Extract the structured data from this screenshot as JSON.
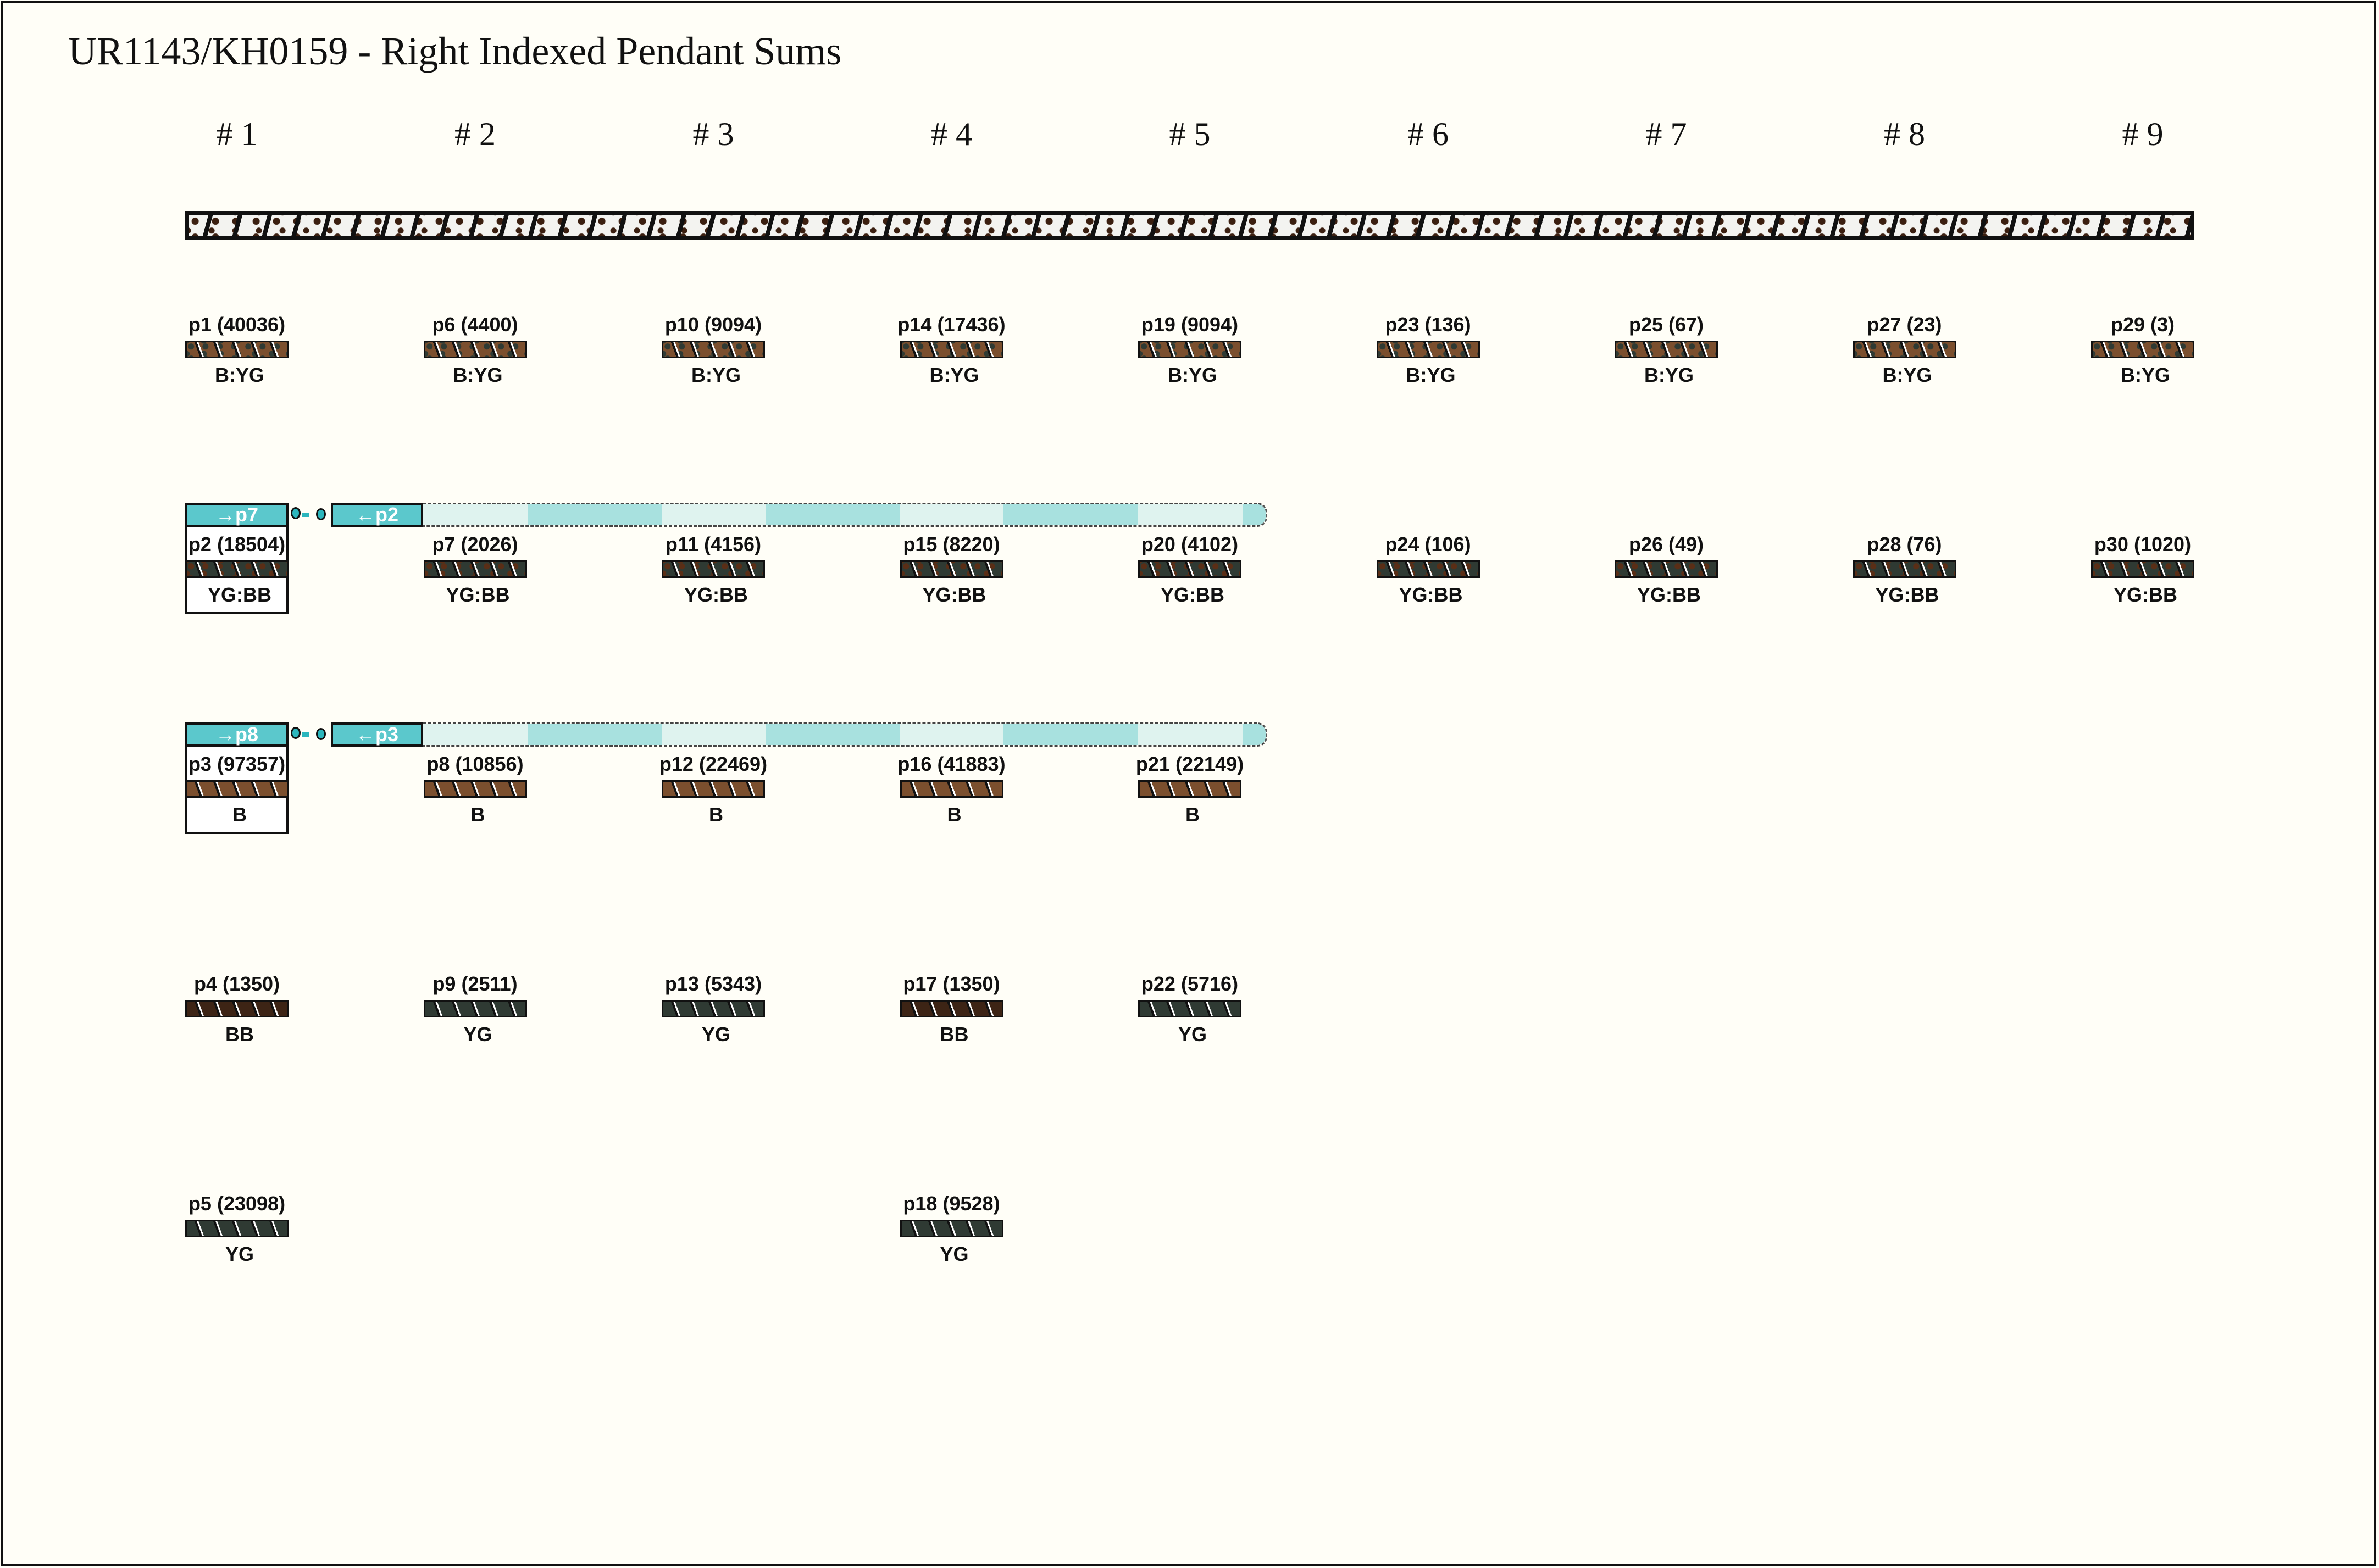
{
  "title": "UR1143/KH0159 - Right Indexed Pendant Sums",
  "groups": [
    "# 1",
    "# 2",
    "# 3",
    "# 4",
    "# 5",
    "# 6",
    "# 7",
    "# 8",
    "# 9"
  ],
  "colors": {
    "B": "#7b4f2e",
    "YG": "#2f3a33",
    "BB": "#3d2415",
    "main_cord": "#f3f3f0",
    "link": "#5bc8cc",
    "band_light": "#dff3ef",
    "band_dark": "#a8e1df"
  },
  "pendants": [
    {
      "name": "p1",
      "sum": "40036",
      "color": "B:YG",
      "group": 1,
      "index": 1
    },
    {
      "name": "p2",
      "sum": "18504",
      "color": "YG:BB",
      "group": 1,
      "index": 2
    },
    {
      "name": "p3",
      "sum": "97357",
      "color": "B",
      "group": 1,
      "index": 3
    },
    {
      "name": "p4",
      "sum": "1350",
      "color": "BB",
      "group": 1,
      "index": 4
    },
    {
      "name": "p5",
      "sum": "23098",
      "color": "YG",
      "group": 1,
      "index": 5
    },
    {
      "name": "p6",
      "sum": "4400",
      "color": "B:YG",
      "group": 2,
      "index": 1
    },
    {
      "name": "p7",
      "sum": "2026",
      "color": "YG:BB",
      "group": 2,
      "index": 2
    },
    {
      "name": "p8",
      "sum": "10856",
      "color": "B",
      "group": 2,
      "index": 3
    },
    {
      "name": "p9",
      "sum": "2511",
      "color": "YG",
      "group": 2,
      "index": 4
    },
    {
      "name": "p10",
      "sum": "9094",
      "color": "B:YG",
      "group": 3,
      "index": 1
    },
    {
      "name": "p11",
      "sum": "4156",
      "color": "YG:BB",
      "group": 3,
      "index": 2
    },
    {
      "name": "p12",
      "sum": "22469",
      "color": "B",
      "group": 3,
      "index": 3
    },
    {
      "name": "p13",
      "sum": "5343",
      "color": "YG",
      "group": 3,
      "index": 4
    },
    {
      "name": "p14",
      "sum": "17436",
      "color": "B:YG",
      "group": 4,
      "index": 1
    },
    {
      "name": "p15",
      "sum": "8220",
      "color": "YG:BB",
      "group": 4,
      "index": 2
    },
    {
      "name": "p16",
      "sum": "41883",
      "color": "B",
      "group": 4,
      "index": 3
    },
    {
      "name": "p17",
      "sum": "1350",
      "color": "BB",
      "group": 4,
      "index": 4
    },
    {
      "name": "p18",
      "sum": "9528",
      "color": "YG",
      "group": 4,
      "index": 5
    },
    {
      "name": "p19",
      "sum": "9094",
      "color": "B:YG",
      "group": 5,
      "index": 1
    },
    {
      "name": "p20",
      "sum": "4102",
      "color": "YG:BB",
      "group": 5,
      "index": 2
    },
    {
      "name": "p21",
      "sum": "22149",
      "color": "B",
      "group": 5,
      "index": 3
    },
    {
      "name": "p22",
      "sum": "5716",
      "color": "YG",
      "group": 5,
      "index": 4
    },
    {
      "name": "p23",
      "sum": "136",
      "color": "B:YG",
      "group": 6,
      "index": 1
    },
    {
      "name": "p24",
      "sum": "106",
      "color": "YG:BB",
      "group": 6,
      "index": 2
    },
    {
      "name": "p25",
      "sum": "67",
      "color": "B:YG",
      "group": 7,
      "index": 1
    },
    {
      "name": "p26",
      "sum": "49",
      "color": "YG:BB",
      "group": 7,
      "index": 2
    },
    {
      "name": "p27",
      "sum": "23",
      "color": "B:YG",
      "group": 8,
      "index": 1
    },
    {
      "name": "p28",
      "sum": "76",
      "color": "YG:BB",
      "group": 8,
      "index": 2
    },
    {
      "name": "p29",
      "sum": "3",
      "color": "B:YG",
      "group": 9,
      "index": 1
    },
    {
      "name": "p30",
      "sum": "1020",
      "color": "YG:BB",
      "group": 9,
      "index": 2
    }
  ],
  "links": [
    {
      "index": 2,
      "to_label": "→p7",
      "from_label": "←p2"
    },
    {
      "index": 3,
      "to_label": "→p8",
      "from_label": "←p3"
    }
  ]
}
